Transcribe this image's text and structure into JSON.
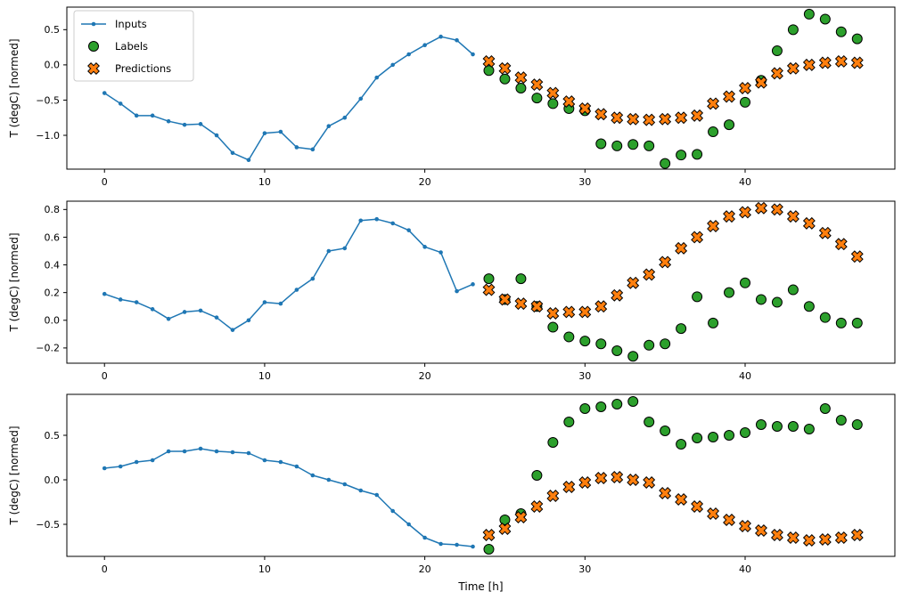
{
  "figure": {
    "xlabel": "Time [h]",
    "ylabel": "T (degC) [normed]",
    "legend": {
      "position": "upper-left",
      "items": [
        {
          "label": "Inputs",
          "marker": "line-dot",
          "color": "#1f77b4"
        },
        {
          "label": "Labels",
          "marker": "circle",
          "color": "#2ca02c"
        },
        {
          "label": "Predictions",
          "marker": "x",
          "color": "#ff7f0e"
        }
      ]
    }
  },
  "chart_data": [
    {
      "type": "line",
      "title": "",
      "xlabel": "",
      "ylabel": "T (degC) [normed]",
      "grid": false,
      "xlim": [
        -2.35,
        49.35
      ],
      "ylim": [
        -1.48,
        0.82
      ],
      "xticks": [
        0,
        10,
        20,
        30,
        40
      ],
      "yticks": [
        0.5,
        0.0,
        -0.5,
        -1.0
      ],
      "series": [
        {
          "name": "Inputs",
          "type": "line-dot",
          "color": "#1f77b4",
          "x": [
            0,
            1,
            2,
            3,
            4,
            5,
            6,
            7,
            8,
            9,
            10,
            11,
            12,
            13,
            14,
            15,
            16,
            17,
            18,
            19,
            20,
            21,
            22,
            23
          ],
          "y": [
            -0.4,
            -0.55,
            -0.72,
            -0.72,
            -0.8,
            -0.85,
            -0.84,
            -1.0,
            -1.25,
            -1.35,
            -0.97,
            -0.95,
            -1.17,
            -1.2,
            -0.87,
            -0.75,
            -0.48,
            -0.18,
            0.0,
            0.15,
            0.28,
            0.4,
            0.35,
            0.15
          ]
        },
        {
          "name": "Labels",
          "type": "scatter-circle",
          "color": "#2ca02c",
          "x": [
            24,
            25,
            26,
            27,
            28,
            29,
            30,
            31,
            32,
            33,
            34,
            35,
            36,
            37,
            38,
            39,
            40,
            41,
            42,
            43,
            44,
            45,
            46,
            47
          ],
          "y": [
            -0.08,
            -0.2,
            -0.33,
            -0.47,
            -0.55,
            -0.62,
            -0.65,
            -1.12,
            -1.15,
            -1.13,
            -1.15,
            -1.4,
            -1.28,
            -1.27,
            -0.95,
            -0.85,
            -0.53,
            -0.22,
            0.2,
            0.5,
            0.72,
            0.65,
            0.47,
            0.37
          ]
        },
        {
          "name": "Predictions",
          "type": "scatter-x",
          "color": "#ff7f0e",
          "x": [
            24,
            25,
            26,
            27,
            28,
            29,
            30,
            31,
            32,
            33,
            34,
            35,
            36,
            37,
            38,
            39,
            40,
            41,
            42,
            43,
            44,
            45,
            46,
            47
          ],
          "y": [
            0.05,
            -0.05,
            -0.18,
            -0.28,
            -0.4,
            -0.52,
            -0.62,
            -0.7,
            -0.75,
            -0.77,
            -0.78,
            -0.77,
            -0.75,
            -0.72,
            -0.55,
            -0.45,
            -0.33,
            -0.25,
            -0.12,
            -0.05,
            0.0,
            0.03,
            0.05,
            0.03
          ]
        }
      ]
    },
    {
      "type": "line",
      "title": "",
      "xlabel": "",
      "ylabel": "T (degC) [normed]",
      "grid": false,
      "xlim": [
        -2.35,
        49.35
      ],
      "ylim": [
        -0.31,
        0.86
      ],
      "xticks": [
        0,
        10,
        20,
        30,
        40
      ],
      "yticks": [
        0.8,
        0.6,
        0.4,
        0.2,
        0.0,
        -0.2
      ],
      "series": [
        {
          "name": "Inputs",
          "type": "line-dot",
          "color": "#1f77b4",
          "x": [
            0,
            1,
            2,
            3,
            4,
            5,
            6,
            7,
            8,
            9,
            10,
            11,
            12,
            13,
            14,
            15,
            16,
            17,
            18,
            19,
            20,
            21,
            22,
            23
          ],
          "y": [
            0.19,
            0.15,
            0.13,
            0.08,
            0.01,
            0.06,
            0.07,
            0.02,
            -0.07,
            0.0,
            0.13,
            0.12,
            0.22,
            0.3,
            0.5,
            0.52,
            0.72,
            0.73,
            0.7,
            0.65,
            0.53,
            0.49,
            0.21,
            0.26
          ]
        },
        {
          "name": "Labels",
          "type": "scatter-circle",
          "color": "#2ca02c",
          "x": [
            24,
            25,
            26,
            27,
            28,
            29,
            30,
            31,
            32,
            33,
            34,
            35,
            36,
            37,
            38,
            39,
            40,
            41,
            42,
            43,
            44,
            45,
            46,
            47
          ],
          "y": [
            0.3,
            0.15,
            0.3,
            0.1,
            -0.05,
            -0.12,
            -0.15,
            -0.17,
            -0.22,
            -0.26,
            -0.18,
            -0.17,
            -0.06,
            0.17,
            -0.02,
            0.2,
            0.27,
            0.15,
            0.13,
            0.22,
            0.1,
            0.02,
            -0.02,
            -0.02
          ]
        },
        {
          "name": "Predictions",
          "type": "scatter-x",
          "color": "#ff7f0e",
          "x": [
            24,
            25,
            26,
            27,
            28,
            29,
            30,
            31,
            32,
            33,
            34,
            35,
            36,
            37,
            38,
            39,
            40,
            41,
            42,
            43,
            44,
            45,
            46,
            47
          ],
          "y": [
            0.22,
            0.15,
            0.12,
            0.1,
            0.05,
            0.06,
            0.06,
            0.1,
            0.18,
            0.27,
            0.33,
            0.42,
            0.52,
            0.6,
            0.68,
            0.75,
            0.78,
            0.81,
            0.8,
            0.75,
            0.7,
            0.63,
            0.55,
            0.46
          ]
        }
      ]
    },
    {
      "type": "line",
      "title": "",
      "xlabel": "Time [h]",
      "ylabel": "T (degC) [normed]",
      "grid": false,
      "xlim": [
        -2.35,
        49.35
      ],
      "ylim": [
        -0.86,
        0.96
      ],
      "xticks": [
        0,
        10,
        20,
        30,
        40
      ],
      "yticks": [
        0.5,
        0.0,
        -0.5
      ],
      "series": [
        {
          "name": "Inputs",
          "type": "line-dot",
          "color": "#1f77b4",
          "x": [
            0,
            1,
            2,
            3,
            4,
            5,
            6,
            7,
            8,
            9,
            10,
            11,
            12,
            13,
            14,
            15,
            16,
            17,
            18,
            19,
            20,
            21,
            22,
            23
          ],
          "y": [
            0.13,
            0.15,
            0.2,
            0.22,
            0.32,
            0.32,
            0.35,
            0.32,
            0.31,
            0.3,
            0.22,
            0.2,
            0.15,
            0.05,
            0.0,
            -0.05,
            -0.12,
            -0.17,
            -0.35,
            -0.5,
            -0.65,
            -0.72,
            -0.73,
            -0.75
          ]
        },
        {
          "name": "Labels",
          "type": "scatter-circle",
          "color": "#2ca02c",
          "x": [
            24,
            25,
            26,
            27,
            28,
            29,
            30,
            31,
            32,
            33,
            34,
            35,
            36,
            37,
            38,
            39,
            40,
            41,
            42,
            43,
            44,
            45,
            46,
            47
          ],
          "y": [
            -0.78,
            -0.45,
            -0.38,
            0.05,
            0.42,
            0.65,
            0.8,
            0.82,
            0.85,
            0.88,
            0.65,
            0.55,
            0.4,
            0.47,
            0.48,
            0.5,
            0.53,
            0.62,
            0.6,
            0.6,
            0.57,
            0.8,
            0.67,
            0.62
          ]
        },
        {
          "name": "Predictions",
          "type": "scatter-x",
          "color": "#ff7f0e",
          "x": [
            24,
            25,
            26,
            27,
            28,
            29,
            30,
            31,
            32,
            33,
            34,
            35,
            36,
            37,
            38,
            39,
            40,
            41,
            42,
            43,
            44,
            45,
            46,
            47
          ],
          "y": [
            -0.62,
            -0.55,
            -0.42,
            -0.3,
            -0.18,
            -0.08,
            -0.03,
            0.02,
            0.03,
            0.0,
            -0.03,
            -0.15,
            -0.22,
            -0.3,
            -0.38,
            -0.45,
            -0.52,
            -0.57,
            -0.62,
            -0.65,
            -0.68,
            -0.67,
            -0.65,
            -0.62
          ]
        }
      ]
    }
  ]
}
